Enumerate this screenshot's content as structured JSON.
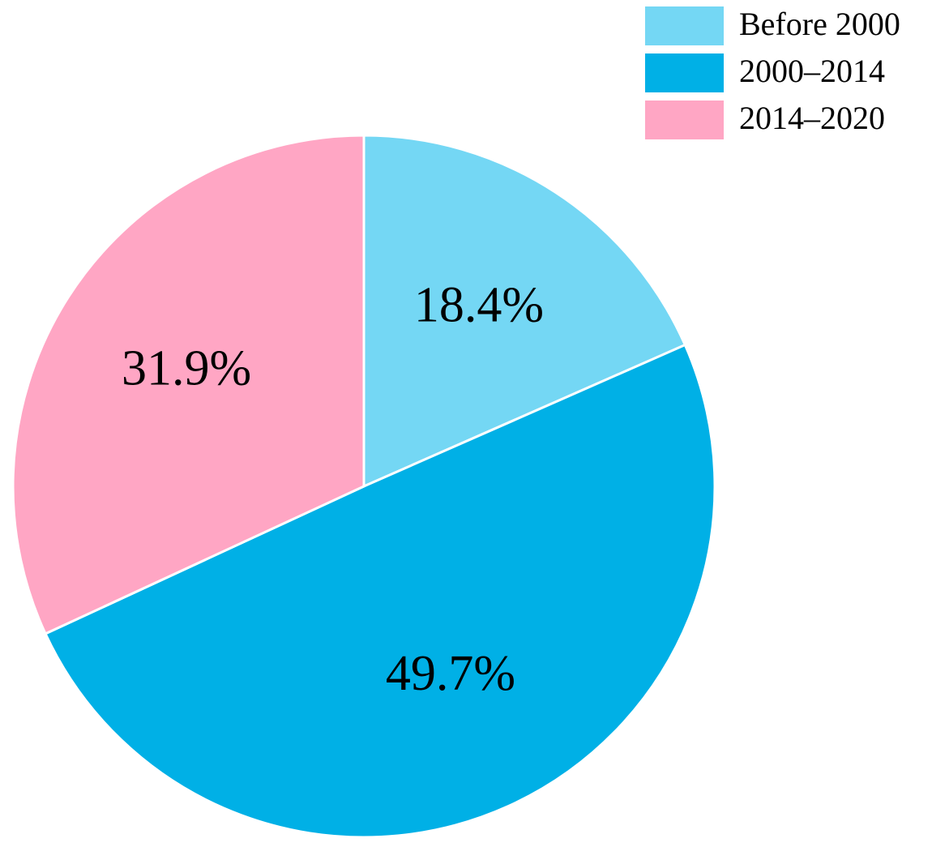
{
  "chart_data": {
    "type": "pie",
    "categories": [
      "Before 2000",
      "2000–2014",
      "2014–2020"
    ],
    "values": [
      18.4,
      49.7,
      31.9
    ],
    "value_labels": [
      "18.4%",
      "49.7%",
      "31.9%"
    ],
    "colors": [
      "#74d7f4",
      "#00b0e6",
      "#ffa6c4"
    ],
    "legend": "upper right"
  }
}
